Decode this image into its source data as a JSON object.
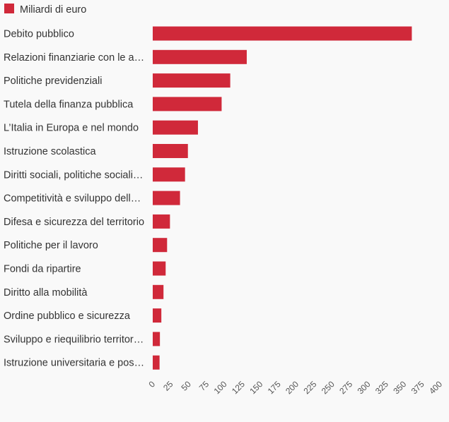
{
  "chart_data": {
    "type": "bar",
    "orientation": "horizontal",
    "legend_position": "top-left",
    "grid": false,
    "series": [
      {
        "name": "Miliardi di euro",
        "color": "#d0293a",
        "values": [
          361,
          131,
          108,
          96,
          63,
          49,
          45,
          38,
          24,
          20,
          18,
          15,
          12,
          10,
          9.5
        ]
      }
    ],
    "categories": [
      "Debito pubblico",
      "Relazioni finanziarie con le a…",
      "Politiche previdenziali",
      "Tutela della finanza pubblica",
      "L’Italia in Europa e nel mondo",
      "Istruzione scolastica",
      "Diritti sociali, politiche sociali…",
      "Competitività e sviluppo dell…",
      "Difesa e sicurezza del territorio",
      "Politiche per il lavoro",
      "Fondi da ripartire",
      "Diritto alla mobilità",
      "Ordine pubblico e sicurezza",
      "Sviluppo e riequilibrio territor…",
      "Istruzione universitaria e pos…"
    ],
    "xlim": [
      0,
      400
    ],
    "x_ticks": [
      "0",
      "25",
      "50",
      "75",
      "100",
      "125",
      "150",
      "175",
      "200",
      "225",
      "250",
      "275",
      "300",
      "325",
      "350",
      "375",
      "400"
    ]
  }
}
